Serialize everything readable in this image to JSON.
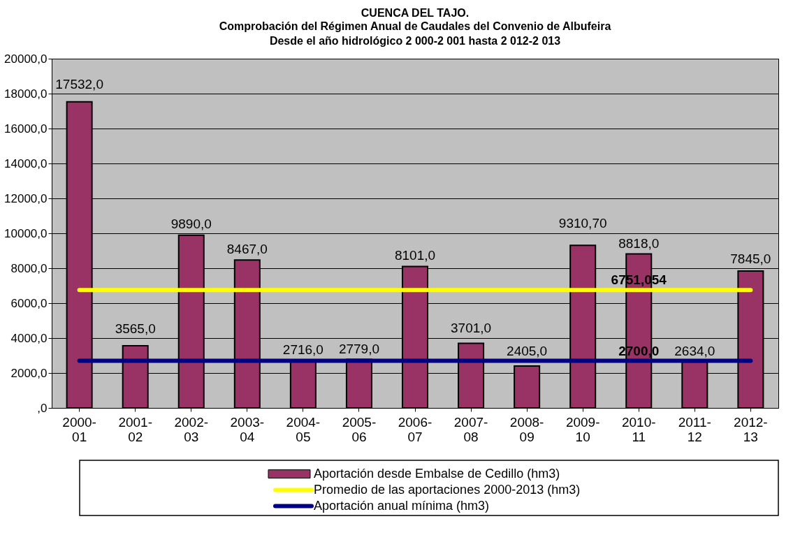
{
  "chart_data": {
    "type": "bar",
    "title": "CUENCA DEL TAJO.",
    "subtitle": "Comprobación del Régimen Anual de Caudales del Convenio de Albufeira\nDesde el año hidrológico 2 000-2 001 hasta 2 012-2 013",
    "categories": [
      "2000-01",
      "2001-02",
      "2002-03",
      "2003-04",
      "2004-05",
      "2005-06",
      "2006-07",
      "2007-08",
      "2008-09",
      "2009-10",
      "2010-11",
      "2011-12",
      "2012-13"
    ],
    "series": [
      {
        "name": "Aportación desde Embalse de Cedillo (hm3)",
        "color": "#993366",
        "values": [
          17532.0,
          3565.0,
          9890.0,
          8467.0,
          2716.0,
          2779.0,
          8101.0,
          3701.0,
          2405.0,
          9310.7,
          8818.0,
          2634.0,
          7845.0
        ],
        "value_labels": [
          "17532,0",
          "3565,0",
          "9890,0",
          "8467,0",
          "2716,0",
          "2779,0",
          "8101,0",
          "3701,0",
          "2405,0",
          "9310,70",
          "8818,0",
          "2634,0",
          "7845,0"
        ]
      },
      {
        "name": "Promedio de las aportaciones 2000-2013 (hm3)",
        "type": "line",
        "color": "#ffff00",
        "values": [
          6751.054,
          6751.054,
          6751.054,
          6751.054,
          6751.054,
          6751.054,
          6751.054,
          6751.054,
          6751.054,
          6751.054,
          6751.054,
          6751.054,
          6751.054
        ]
      },
      {
        "name": "Aportación anual mínima (hm3)",
        "type": "line",
        "color": "#000080",
        "values": [
          2700.0,
          2700.0,
          2700.0,
          2700.0,
          2700.0,
          2700.0,
          2700.0,
          2700.0,
          2700.0,
          2700.0,
          2700.0,
          2700.0,
          2700.0
        ]
      }
    ],
    "annotations": [
      {
        "text": "6751,054",
        "x": "2010-11",
        "y": 6751.054
      },
      {
        "text": "2700,0",
        "x": "2010-11",
        "y": 2700.0
      }
    ],
    "ylim": [
      0,
      20000
    ],
    "yticks": [
      {
        "value": 0,
        "label": ",0"
      },
      {
        "value": 2000,
        "label": "2000,0"
      },
      {
        "value": 4000,
        "label": "4000,0"
      },
      {
        "value": 6000,
        "label": "6000,0"
      },
      {
        "value": 8000,
        "label": "8000,0"
      },
      {
        "value": 10000,
        "label": "10000,0"
      },
      {
        "value": 12000,
        "label": "12000,0"
      },
      {
        "value": 14000,
        "label": "14000,0"
      },
      {
        "value": 16000,
        "label": "16000,0"
      },
      {
        "value": 18000,
        "label": "18000,0"
      },
      {
        "value": 20000,
        "label": "20000,0"
      }
    ],
    "grid": "y",
    "legend": "bottom"
  }
}
